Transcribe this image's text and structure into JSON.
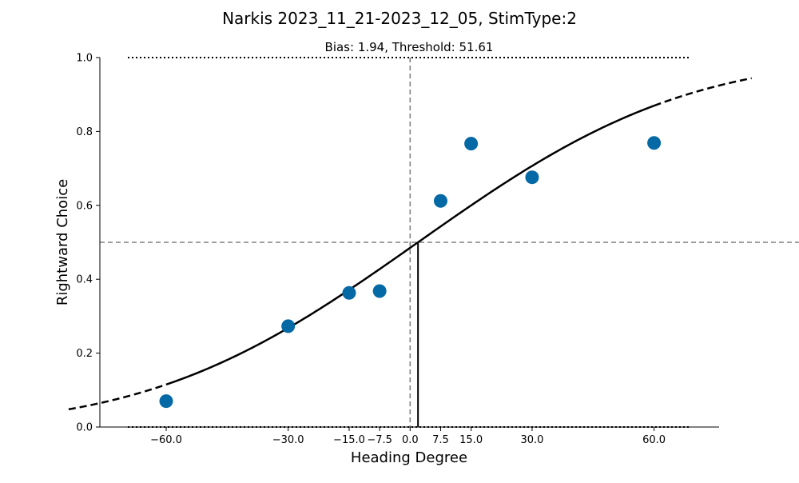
{
  "chart_data": {
    "type": "scatter",
    "title": "Narkis 2023_11_21-2023_12_05, StimType:2",
    "subtitle": "Bias: 1.94, Threshold: 51.61",
    "xlabel": "Heading Degree",
    "ylabel": "Rightward Choice",
    "xlim": [
      -83,
      83
    ],
    "ylim": [
      0,
      1
    ],
    "x_ticks": [
      -60,
      -30,
      -15,
      -7.5,
      0,
      7.5,
      15,
      30,
      60
    ],
    "x_tick_labels": [
      "−60.0",
      "−30.0",
      "−15.0",
      "−7.5",
      "0.0",
      "7.5",
      "15.0",
      "30.0",
      "60.0"
    ],
    "y_ticks": [
      0,
      0.2,
      0.4,
      0.6,
      0.8,
      1.0
    ],
    "y_tick_labels": [
      "0.0",
      "0.2",
      "0.4",
      "0.6",
      "0.8",
      "1.0"
    ],
    "points": [
      {
        "x": -60,
        "y": 0.07
      },
      {
        "x": -30,
        "y": 0.273
      },
      {
        "x": -15,
        "y": 0.363
      },
      {
        "x": -7.5,
        "y": 0.368
      },
      {
        "x": 7.5,
        "y": 0.612
      },
      {
        "x": 15,
        "y": 0.767
      },
      {
        "x": 30,
        "y": 0.676
      },
      {
        "x": 60,
        "y": 0.769
      }
    ],
    "fit": {
      "model": "cumulative-normal",
      "bias": 1.94,
      "threshold": 51.61,
      "solid_range": [
        -60,
        60
      ],
      "dashed_range": [
        -84,
        84
      ]
    },
    "reference_lines": {
      "bias_x": 1.94,
      "zero_x": 0,
      "half_y": 0.5,
      "bounds_y": [
        0,
        1
      ]
    },
    "colors": {
      "points": "#0569a6",
      "fit": "#000000",
      "reference": "#808080"
    },
    "grid": false
  }
}
